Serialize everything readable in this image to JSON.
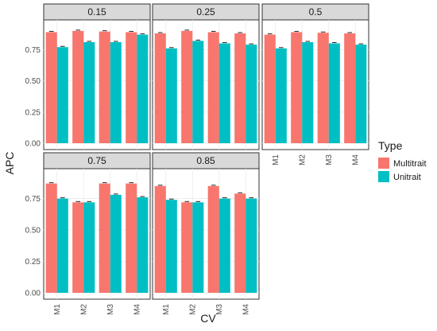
{
  "chart_data": {
    "type": "bar",
    "xlabel": "CV",
    "ylabel": "APC",
    "ylim": [
      0,
      0.95
    ],
    "yticks": [
      0.0,
      0.25,
      0.5,
      0.75
    ],
    "ytick_labels": [
      "0.00",
      "0.25",
      "0.50",
      "0.75"
    ],
    "categories": [
      "M1",
      "M2",
      "M3",
      "M4"
    ],
    "legend": {
      "title": "Type",
      "placement": "right",
      "entries": [
        {
          "name": "Multitrait",
          "color": "#F8766D"
        },
        {
          "name": "Unitrait",
          "color": "#00BFC4"
        }
      ]
    },
    "facets": [
      {
        "label": "0.15",
        "series": [
          {
            "name": "Multitrait",
            "values": [
              0.89,
              0.9,
              0.895,
              0.89
            ]
          },
          {
            "name": "Unitrait",
            "values": [
              0.77,
              0.81,
              0.81,
              0.87
            ]
          }
        ]
      },
      {
        "label": "0.25",
        "series": [
          {
            "name": "Multitrait",
            "values": [
              0.88,
              0.9,
              0.89,
              0.88
            ]
          },
          {
            "name": "Unitrait",
            "values": [
              0.76,
              0.82,
              0.8,
              0.79
            ]
          }
        ]
      },
      {
        "label": "0.5",
        "series": [
          {
            "name": "Multitrait",
            "values": [
              0.87,
              0.89,
              0.885,
              0.88
            ]
          },
          {
            "name": "Unitrait",
            "values": [
              0.76,
              0.81,
              0.8,
              0.79
            ]
          }
        ]
      },
      {
        "label": "0.75",
        "series": [
          {
            "name": "Multitrait",
            "values": [
              0.87,
              0.72,
              0.87,
              0.87
            ]
          },
          {
            "name": "Unitrait",
            "values": [
              0.75,
              0.72,
              0.78,
              0.76
            ]
          }
        ]
      },
      {
        "label": "0.85",
        "series": [
          {
            "name": "Multitrait",
            "values": [
              0.85,
              0.72,
              0.85,
              0.79
            ]
          },
          {
            "name": "Unitrait",
            "values": [
              0.74,
              0.72,
              0.75,
              0.75
            ]
          }
        ]
      }
    ]
  }
}
